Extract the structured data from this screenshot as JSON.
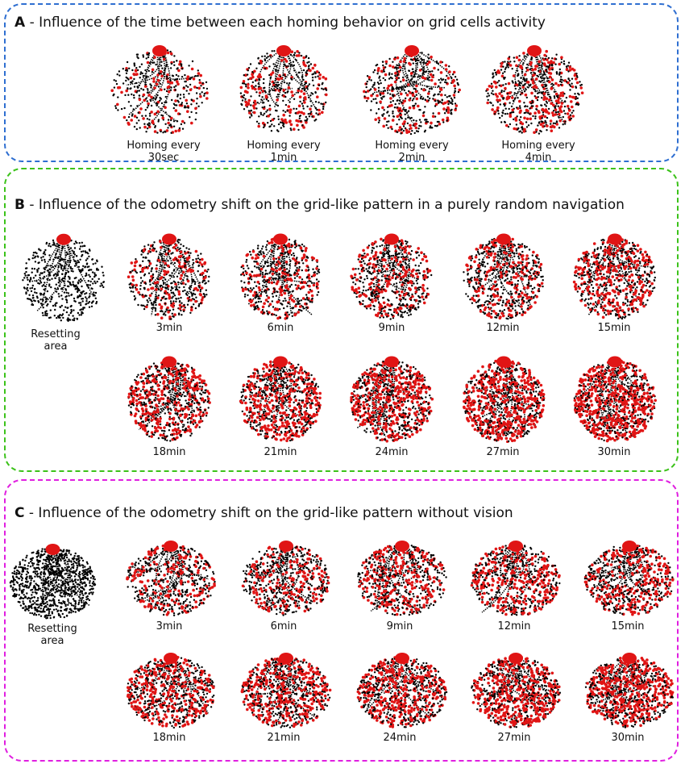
{
  "colors": {
    "panel_a": "#2f6fd1",
    "panel_b": "#3cc21a",
    "panel_c": "#e01fe0",
    "trajectory": "#000000",
    "grid_activity": "#e01515"
  },
  "panel_a": {
    "letter": "A",
    "title": "- Influence of the time between each homing behavior on grid cells activity",
    "captions": [
      "Homing every\n30sec",
      "Homing every\n1min",
      "Homing every\n2min",
      "Homing every\n4min"
    ]
  },
  "panel_b": {
    "letter": "B",
    "title": "- Influence of the odometry shift on the grid-like pattern in a purely random navigation",
    "reset_caption": "Resetting\narea",
    "captions": [
      "3min",
      "6min",
      "9min",
      "12min",
      "15min",
      "18min",
      "21min",
      "24min",
      "27min",
      "30min"
    ]
  },
  "panel_c": {
    "letter": "C",
    "title": "- Influence of the odometry shift on the grid-like pattern without vision",
    "reset_caption": "Resetting\narea",
    "captions": [
      "3min",
      "6min",
      "9min",
      "12min",
      "15min",
      "18min",
      "21min",
      "24min",
      "27min",
      "30min"
    ]
  }
}
